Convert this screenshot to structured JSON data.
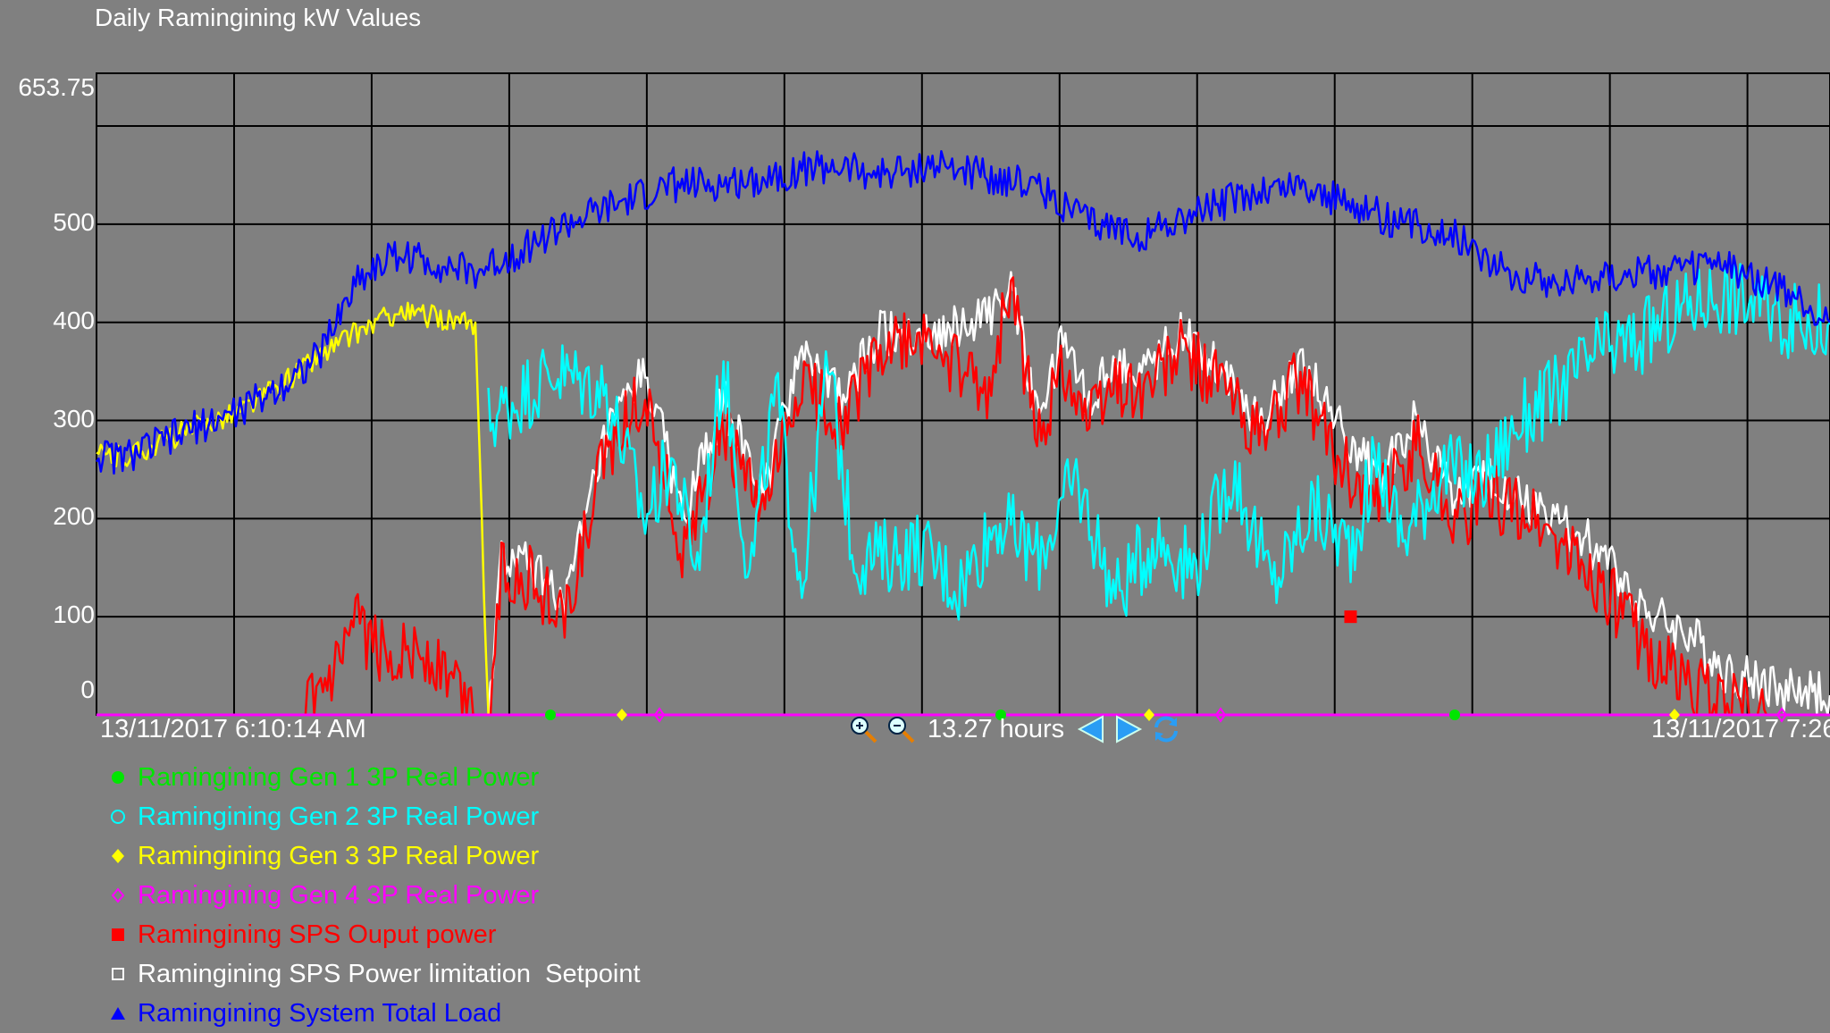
{
  "chart_data": {
    "type": "line",
    "title": "Daily Ramingining kW Values",
    "x_start_label": "13/11/2017 6:10:14 AM",
    "x_end_label": "13/11/2017 7:26",
    "span_label": "13.27 hours",
    "ylim": [
      0,
      653.75
    ],
    "yticks": [
      "653.75",
      "500",
      "400",
      "300",
      "200",
      "100",
      "0"
    ],
    "ytick_values": [
      653.75,
      500,
      400,
      300,
      200,
      100,
      0
    ],
    "xlim": [
      0,
      13.27
    ],
    "grid": true,
    "legend_position": "bottom-left",
    "series": [
      {
        "name": "Ramingining Gen 1 3P Real Power",
        "color": "#00e600",
        "marker": "circle-filled",
        "x": [
          0,
          13.27
        ],
        "values": [
          0,
          0
        ]
      },
      {
        "name": "Ramingining Gen 2 3P Real Power",
        "color": "#00ffff",
        "marker": "circle-open",
        "x": [
          3.0,
          3.1,
          3.5,
          3.9,
          4.2,
          4.4,
          4.6,
          4.8,
          5.0,
          5.2,
          5.4,
          5.6,
          5.8,
          6.0,
          6.3,
          6.6,
          6.9,
          7.2,
          7.5,
          7.8,
          8.1,
          8.4,
          8.7,
          9.0,
          9.3,
          9.6,
          9.8,
          10.0,
          10.3,
          10.6,
          10.9,
          11.2,
          11.5,
          11.8,
          12.1,
          12.4,
          12.7,
          13.0,
          13.27
        ],
        "values": [
          300,
          310,
          350,
          330,
          200,
          260,
          150,
          360,
          140,
          330,
          130,
          360,
          160,
          160,
          170,
          130,
          200,
          160,
          240,
          120,
          180,
          150,
          250,
          130,
          210,
          170,
          260,
          180,
          250,
          240,
          300,
          330,
          370,
          380,
          410,
          430,
          420,
          400,
          400
        ]
      },
      {
        "name": "Ramingining Gen 3 3P Real Power",
        "color": "#ffff00",
        "marker": "diamond-filled",
        "x": [
          0,
          0.2,
          0.5,
          0.8,
          1.1,
          1.4,
          1.7,
          2.0,
          2.3,
          2.6,
          2.8,
          2.9,
          3.0
        ],
        "values": [
          265,
          262,
          278,
          295,
          310,
          335,
          365,
          390,
          410,
          405,
          400,
          390,
          0
        ]
      },
      {
        "name": "Ramingining Gen 4 3P Real Power",
        "color": "#ff00ff",
        "marker": "diamond-open",
        "x": [
          0,
          13.27
        ],
        "values": [
          0,
          0
        ]
      },
      {
        "name": "Ramingining SPS Ouput power",
        "color": "#ff0000",
        "marker": "square-filled",
        "x": [
          1.6,
          1.8,
          2.0,
          2.2,
          2.4,
          2.6,
          2.8,
          2.9,
          3.0,
          3.1,
          3.3,
          3.6,
          3.9,
          4.2,
          4.5,
          4.8,
          5.1,
          5.4,
          5.7,
          6.0,
          6.4,
          6.8,
          7.0,
          7.2,
          7.4,
          7.6,
          7.8,
          8.0,
          8.3,
          8.6,
          8.9,
          9.2,
          9.5,
          9.8,
          10.1,
          10.4,
          10.7,
          11.0,
          11.3,
          11.6,
          11.9,
          12.2,
          12.5,
          12.8
        ],
        "values": [
          0,
          30,
          90,
          60,
          70,
          50,
          20,
          0,
          0,
          150,
          140,
          100,
          270,
          330,
          160,
          290,
          200,
          340,
          300,
          370,
          380,
          320,
          440,
          280,
          360,
          300,
          340,
          330,
          370,
          340,
          280,
          340,
          260,
          210,
          280,
          200,
          220,
          200,
          160,
          120,
          60,
          30,
          10,
          0
        ]
      },
      {
        "name": "Ramingining SPS Power limitation  Setpoint",
        "color": "#ffffff",
        "marker": "square-open",
        "x": [
          3.0,
          3.1,
          3.3,
          3.6,
          3.9,
          4.2,
          4.5,
          4.8,
          5.1,
          5.4,
          5.7,
          6.0,
          6.4,
          6.8,
          7.0,
          7.2,
          7.4,
          7.6,
          7.8,
          8.0,
          8.3,
          8.6,
          8.9,
          9.2,
          9.5,
          9.8,
          10.1,
          10.4,
          10.7,
          11.0,
          11.3,
          11.6,
          11.9,
          12.2,
          12.5,
          12.8,
          13.27
        ],
        "values": [
          0,
          160,
          150,
          120,
          280,
          350,
          200,
          320,
          220,
          380,
          320,
          390,
          390,
          400,
          440,
          300,
          380,
          320,
          360,
          350,
          390,
          360,
          300,
          360,
          300,
          240,
          300,
          220,
          240,
          210,
          190,
          150,
          100,
          80,
          40,
          30,
          20
        ]
      },
      {
        "name": "Ramingining System Total Load",
        "color": "#0000ff",
        "marker": "triangle-filled",
        "x": [
          0,
          0.2,
          0.5,
          0.8,
          1.1,
          1.4,
          1.7,
          2.0,
          2.3,
          2.6,
          2.9,
          3.2,
          3.6,
          4.0,
          4.4,
          4.8,
          5.2,
          5.6,
          6.0,
          6.4,
          6.8,
          7.2,
          7.6,
          8.0,
          8.4,
          8.8,
          9.2,
          9.6,
          10.0,
          10.4,
          10.8,
          11.2,
          11.6,
          12.0,
          12.4,
          12.8,
          13.27
        ],
        "values": [
          265,
          262,
          278,
          295,
          310,
          335,
          365,
          445,
          470,
          460,
          450,
          470,
          500,
          520,
          540,
          540,
          550,
          560,
          550,
          560,
          550,
          540,
          500,
          490,
          510,
          530,
          540,
          520,
          500,
          490,
          450,
          440,
          450,
          450,
          460,
          440,
          400
        ]
      }
    ]
  },
  "ui": {
    "zoom_in": "zoom-in-icon",
    "zoom_out": "zoom-out-icon",
    "scroll_left": "arrow-left-icon",
    "scroll_right": "arrow-right-icon",
    "refresh": "refresh-icon"
  }
}
